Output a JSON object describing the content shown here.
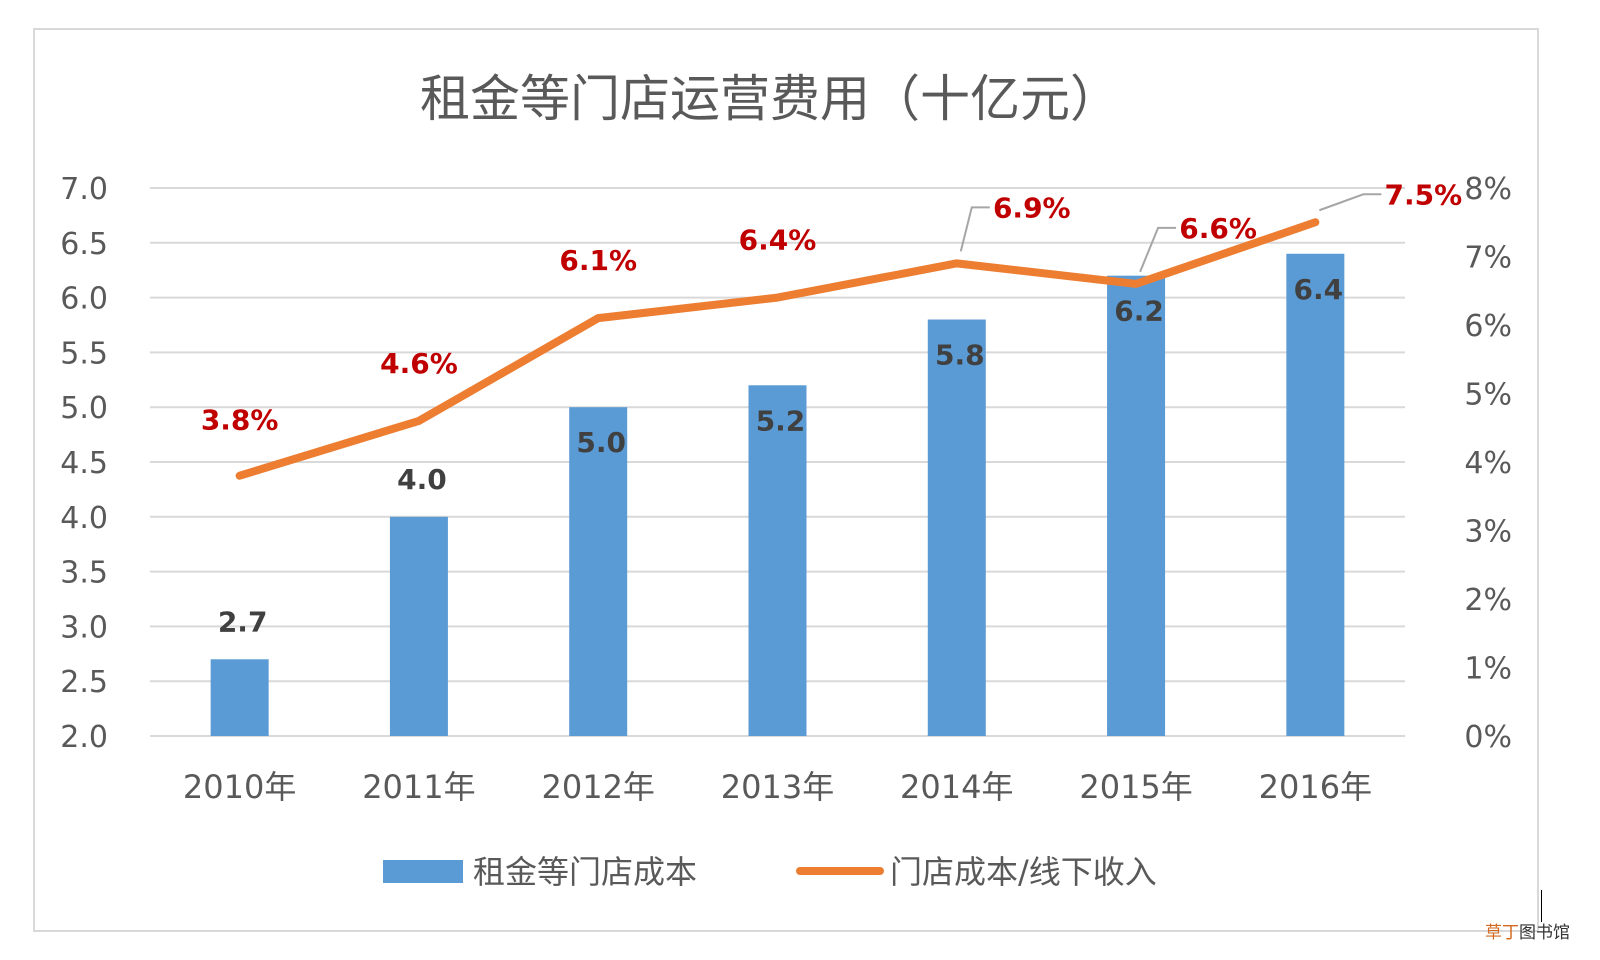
{
  "chart_data": {
    "type": "bar+line",
    "title": "租金等门店运营费用（十亿元）",
    "categories": [
      "2010年",
      "2011年",
      "2012年",
      "2013年",
      "2014年",
      "2015年",
      "2016年"
    ],
    "series": [
      {
        "name": "租金等门店成本",
        "type": "bar",
        "axis": "left",
        "values": [
          2.7,
          4.0,
          5.0,
          5.2,
          5.8,
          6.2,
          6.4
        ],
        "labels": [
          "2.7",
          "4.0",
          "5.0",
          "5.2",
          "5.8",
          "6.2",
          "6.4"
        ],
        "color": "#5b9bd5"
      },
      {
        "name": "门店成本/线下收入",
        "type": "line",
        "axis": "right",
        "values": [
          3.8,
          4.6,
          6.1,
          6.4,
          6.9,
          6.6,
          7.5
        ],
        "labels": [
          "3.8%",
          "4.6%",
          "6.1%",
          "6.4%",
          "6.9%",
          "6.6%",
          "7.5%"
        ],
        "color": "#ed7d31",
        "label_color": "#c00000"
      }
    ],
    "y_left": {
      "ylim": [
        2.0,
        7.0
      ],
      "ticks": [
        "2.0",
        "2.5",
        "3.0",
        "3.5",
        "4.0",
        "4.5",
        "5.0",
        "5.5",
        "6.0",
        "6.5",
        "7.0"
      ]
    },
    "y_right": {
      "ylim": [
        0,
        8
      ],
      "ticks": [
        "0%",
        "1%",
        "2%",
        "3%",
        "4%",
        "5%",
        "6%",
        "7%",
        "8%"
      ]
    },
    "grid": true,
    "legend": "bottom"
  },
  "watermark": {
    "accent": "草丁",
    "rest": "图书馆"
  }
}
